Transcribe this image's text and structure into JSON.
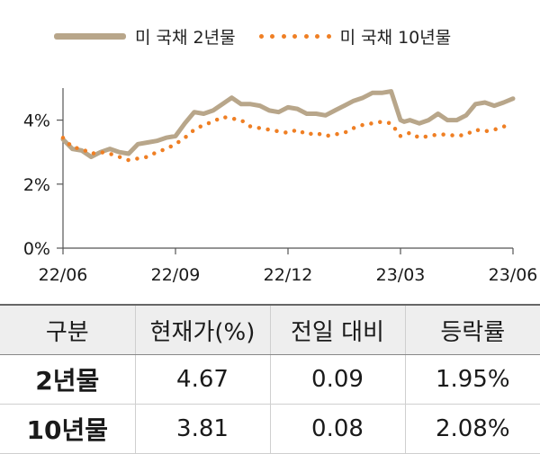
{
  "chart_data": {
    "type": "line",
    "legend": [
      "미 국채 2년물",
      "미 국채 10년물"
    ],
    "yticks": [
      "0%",
      "2%",
      "4%"
    ],
    "ylim": [
      0,
      5
    ],
    "xticks": [
      "22/06",
      "22/09",
      "22/12",
      "23/03",
      "23/06"
    ],
    "xlim": [
      0,
      12
    ],
    "series": [
      {
        "name": "미 국채 2년물",
        "color": "#b8a68a",
        "style": "solid",
        "x": [
          0,
          0.25,
          0.5,
          0.75,
          1.0,
          1.25,
          1.5,
          1.75,
          2.0,
          2.25,
          2.5,
          2.75,
          3.0,
          3.25,
          3.5,
          3.75,
          4.0,
          4.25,
          4.5,
          4.75,
          5.0,
          5.25,
          5.5,
          5.75,
          6.0,
          6.25,
          6.5,
          6.75,
          7.0,
          7.25,
          7.5,
          7.75,
          8.0,
          8.25,
          8.5,
          8.75,
          9.0,
          9.1,
          9.25,
          9.5,
          9.75,
          10.0,
          10.25,
          10.5,
          10.75,
          11.0,
          11.25,
          11.5,
          11.75,
          12.0
        ],
        "values": [
          3.4,
          3.1,
          3.05,
          2.85,
          3.0,
          3.1,
          3.0,
          2.95,
          3.25,
          3.3,
          3.35,
          3.45,
          3.5,
          3.9,
          4.25,
          4.2,
          4.3,
          4.5,
          4.7,
          4.5,
          4.5,
          4.45,
          4.3,
          4.25,
          4.4,
          4.35,
          4.2,
          4.2,
          4.15,
          4.3,
          4.45,
          4.6,
          4.7,
          4.85,
          4.85,
          4.9,
          4.0,
          3.95,
          4.0,
          3.9,
          4.0,
          4.2,
          4.0,
          4.0,
          4.15,
          4.5,
          4.55,
          4.45,
          4.55,
          4.67
        ]
      },
      {
        "name": "미 국채 10년물",
        "color": "#ef7f24",
        "style": "dotted",
        "x": [
          0,
          0.25,
          0.5,
          0.75,
          1.0,
          1.25,
          1.5,
          1.75,
          2.0,
          2.25,
          2.5,
          2.75,
          3.0,
          3.25,
          3.5,
          3.75,
          4.0,
          4.25,
          4.5,
          4.75,
          5.0,
          5.25,
          5.5,
          5.75,
          6.0,
          6.25,
          6.5,
          6.75,
          7.0,
          7.25,
          7.5,
          7.75,
          8.0,
          8.25,
          8.5,
          8.75,
          9.0,
          9.25,
          9.5,
          9.75,
          10.0,
          10.25,
          10.5,
          10.75,
          11.0,
          11.25,
          11.5,
          11.75,
          12.0
        ],
        "values": [
          3.45,
          3.15,
          3.1,
          2.95,
          3.0,
          2.95,
          2.85,
          2.75,
          2.8,
          2.85,
          3.0,
          3.1,
          3.25,
          3.45,
          3.7,
          3.85,
          3.95,
          4.1,
          4.05,
          4.0,
          3.8,
          3.75,
          3.7,
          3.65,
          3.6,
          3.7,
          3.55,
          3.6,
          3.5,
          3.55,
          3.6,
          3.75,
          3.85,
          3.9,
          3.95,
          3.9,
          3.5,
          3.6,
          3.45,
          3.5,
          3.55,
          3.55,
          3.5,
          3.55,
          3.7,
          3.65,
          3.7,
          3.8,
          3.81
        ]
      }
    ]
  },
  "table": {
    "headers": [
      "구분",
      "현재가(%)",
      "전일 대비",
      "등락률"
    ],
    "rows": [
      [
        "2년물",
        "4.67",
        "0.09",
        "1.95%"
      ],
      [
        "10년물",
        "3.81",
        "0.08",
        "2.08%"
      ]
    ]
  }
}
